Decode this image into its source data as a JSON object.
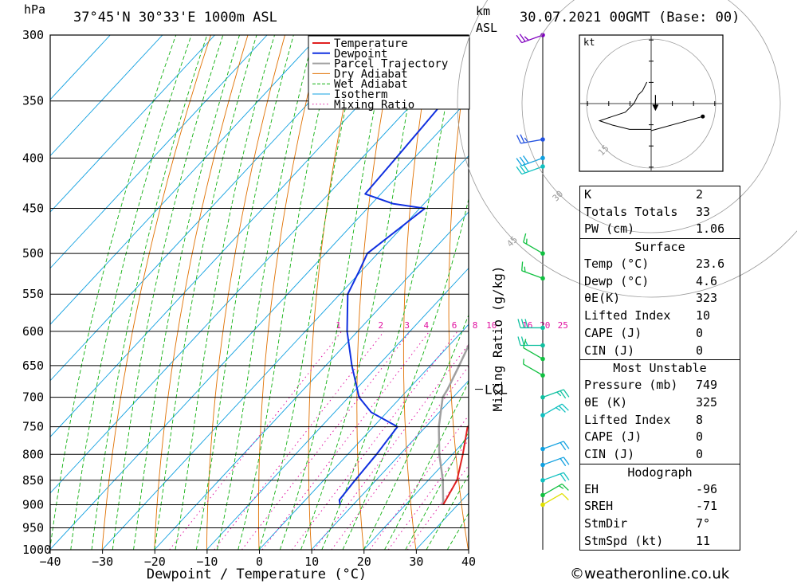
{
  "header": {
    "hpa_unit": "hPa",
    "location": "37°45'N 30°33'E 1000m ASL",
    "km_unit": "km",
    "asl_unit": "ASL",
    "datetime": "30.07.2021 00GMT (Base: 00)"
  },
  "chart_data": {
    "type": "skew-t",
    "xlabel": "Dewpoint / Temperature (°C)",
    "ylabel": "Mixing Ratio (g/kg)",
    "pressure_ticks": [
      300,
      350,
      400,
      450,
      500,
      550,
      600,
      650,
      700,
      750,
      800,
      850,
      900,
      950,
      1000
    ],
    "temperature_ticks": [
      -40,
      -30,
      -20,
      -10,
      0,
      10,
      20,
      30,
      40
    ],
    "mixing_ratio_labels": [
      "1",
      "2",
      "3",
      "4",
      "6",
      "8",
      "10",
      "16",
      "20",
      "25"
    ],
    "lcl_label": "LCL",
    "lcl_pressure": 687,
    "legend": [
      {
        "name": "Temperature",
        "color": "#e02020"
      },
      {
        "name": "Dewpoint",
        "color": "#1030e0"
      },
      {
        "name": "Parcel Trajectory",
        "color": "#a0a0a0"
      },
      {
        "name": "Dry Adiabat",
        "color": "#e07000"
      },
      {
        "name": "Wet Adiabat",
        "color": "#10b010"
      },
      {
        "name": "Isotherm",
        "color": "#10a0e0"
      },
      {
        "name": "Mixing Ratio",
        "color": "#e010a0"
      }
    ],
    "temperature_profile": [
      [
        900,
        27.2
      ],
      [
        850,
        25.5
      ],
      [
        800,
        22.0
      ],
      [
        750,
        18.0
      ],
      [
        735,
        20.0
      ],
      [
        720,
        22.5
      ],
      [
        700,
        22.5
      ],
      [
        650,
        19.5
      ],
      [
        600,
        16.0
      ],
      [
        550,
        12.0
      ],
      [
        500,
        6.0
      ],
      [
        450,
        -1.5
      ],
      [
        440,
        0.0
      ],
      [
        360,
        -8.0
      ]
    ],
    "dewpoint_profile": [
      [
        900,
        7.5
      ],
      [
        890,
        6.5
      ],
      [
        850,
        6.0
      ],
      [
        800,
        5.5
      ],
      [
        750,
        4.6
      ],
      [
        725,
        -3.0
      ],
      [
        700,
        -8.0
      ],
      [
        650,
        -15.0
      ],
      [
        600,
        -22.0
      ],
      [
        550,
        -28.5
      ],
      [
        520,
        -30.5
      ],
      [
        500,
        -32.0
      ],
      [
        450,
        -29.0
      ],
      [
        445,
        -36.0
      ],
      [
        435,
        -43.0
      ],
      [
        400,
        -43.5
      ],
      [
        370,
        -44.0
      ],
      [
        300,
        -45.5
      ]
    ],
    "parcel_profile": [
      [
        900,
        27.2
      ],
      [
        850,
        22.8
      ],
      [
        800,
        17.5
      ],
      [
        750,
        12.5
      ],
      [
        700,
        8.0
      ],
      [
        687,
        7.5
      ],
      [
        650,
        5.5
      ],
      [
        600,
        2.5
      ],
      [
        550,
        -1.0
      ],
      [
        500,
        -5.5
      ],
      [
        450,
        -11.0
      ],
      [
        400,
        -17.0
      ],
      [
        350,
        -24.5
      ],
      [
        300,
        -33.0
      ]
    ],
    "wind_barbs": [
      {
        "pressure": 300,
        "dir": 250,
        "speed_kt": 25,
        "color": "#8000c0"
      },
      {
        "pressure": 383,
        "dir": 260,
        "speed_kt": 25,
        "color": "#2050e0"
      },
      {
        "pressure": 400,
        "dir": 250,
        "speed_kt": 30,
        "color": "#10a0e0"
      },
      {
        "pressure": 408,
        "dir": 250,
        "speed_kt": 30,
        "color": "#10c0c0"
      },
      {
        "pressure": 500,
        "dir": 300,
        "speed_kt": 15,
        "color": "#10c040"
      },
      {
        "pressure": 530,
        "dir": 290,
        "speed_kt": 15,
        "color": "#10c040"
      },
      {
        "pressure": 595,
        "dir": 270,
        "speed_kt": 30,
        "color": "#10c0a0"
      },
      {
        "pressure": 620,
        "dir": 270,
        "speed_kt": 25,
        "color": "#10c0a0"
      },
      {
        "pressure": 640,
        "dir": 300,
        "speed_kt": 10,
        "color": "#10c040"
      },
      {
        "pressure": 665,
        "dir": 300,
        "speed_kt": 5,
        "color": "#10c040"
      },
      {
        "pressure": 700,
        "dir": 70,
        "speed_kt": 25,
        "color": "#10c0a0"
      },
      {
        "pressure": 730,
        "dir": 60,
        "speed_kt": 25,
        "color": "#10c0c0"
      },
      {
        "pressure": 790,
        "dir": 70,
        "speed_kt": 20,
        "color": "#10a0e0"
      },
      {
        "pressure": 820,
        "dir": 70,
        "speed_kt": 20,
        "color": "#10a0e0"
      },
      {
        "pressure": 850,
        "dir": 70,
        "speed_kt": 20,
        "color": "#10c0c0"
      },
      {
        "pressure": 880,
        "dir": 60,
        "speed_kt": 15,
        "color": "#10c040"
      },
      {
        "pressure": 900,
        "dir": 60,
        "speed_kt": 10,
        "color": "#e0e000"
      }
    ],
    "hodograph": {
      "unit": "kt",
      "ring_labels": [
        "15",
        "30",
        "45"
      ],
      "trace_points": [
        [
          -1,
          5
        ],
        [
          -2,
          3
        ],
        [
          -3,
          2
        ],
        [
          -4,
          0
        ],
        [
          -6,
          -2
        ],
        [
          -9,
          -3
        ],
        [
          -12,
          -4
        ],
        [
          -9,
          -5
        ],
        [
          -5,
          -6
        ],
        [
          -2,
          -6
        ],
        [
          0,
          -6
        ]
      ],
      "storm_motion": [
        1,
        2
      ],
      "marker_point": [
        12,
        -3
      ]
    }
  },
  "indices": {
    "general": [
      {
        "label": "K",
        "value": "2"
      },
      {
        "label": "Totals Totals",
        "value": "33"
      },
      {
        "label": "PW (cm)",
        "value": "1.06"
      }
    ],
    "surface": {
      "title": "Surface",
      "rows": [
        {
          "label": "Temp (°C)",
          "value": "23.6"
        },
        {
          "label": "Dewp (°C)",
          "value": "4.6"
        },
        {
          "label": "θE(K)",
          "value": "323"
        },
        {
          "label": "Lifted Index",
          "value": "10"
        },
        {
          "label": "CAPE (J)",
          "value": "0"
        },
        {
          "label": "CIN (J)",
          "value": "0"
        }
      ]
    },
    "most_unstable": {
      "title": "Most Unstable",
      "rows": [
        {
          "label": "Pressure (mb)",
          "value": "749"
        },
        {
          "label": "θE (K)",
          "value": "325"
        },
        {
          "label": "Lifted Index",
          "value": "8"
        },
        {
          "label": "CAPE (J)",
          "value": "0"
        },
        {
          "label": "CIN (J)",
          "value": "0"
        }
      ]
    },
    "hodograph": {
      "title": "Hodograph",
      "rows": [
        {
          "label": "EH",
          "value": "-96"
        },
        {
          "label": "SREH",
          "value": "-71"
        },
        {
          "label": "StmDir",
          "value": "7°"
        },
        {
          "label": "StmSpd (kt)",
          "value": "11"
        }
      ]
    }
  },
  "footer": "©weatheronline.co.uk"
}
